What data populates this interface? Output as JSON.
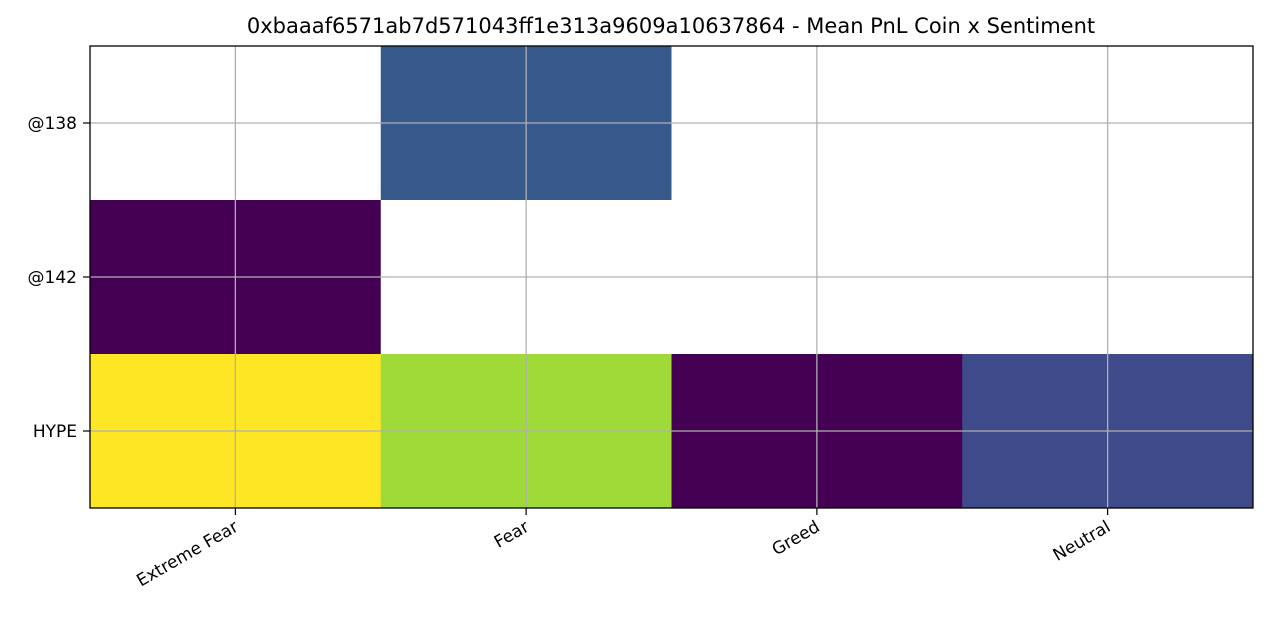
{
  "chart_data": {
    "type": "heatmap",
    "title": "0xbaaaf6571ab7d571043ff1e313a9609a10637864 - Mean PnL Coin x Sentiment",
    "x_categories": [
      "Extreme Fear",
      "Fear",
      "Greed",
      "Neutral"
    ],
    "y_categories": [
      "@138",
      "@142",
      "HYPE"
    ],
    "cells": [
      {
        "row": "@138",
        "col": "Extreme Fear",
        "value": null
      },
      {
        "row": "@138",
        "col": "Fear",
        "value": 0.2
      },
      {
        "row": "@138",
        "col": "Greed",
        "value": null
      },
      {
        "row": "@138",
        "col": "Neutral",
        "value": null
      },
      {
        "row": "@142",
        "col": "Extreme Fear",
        "value": 0.0
      },
      {
        "row": "@142",
        "col": "Fear",
        "value": null
      },
      {
        "row": "@142",
        "col": "Greed",
        "value": null
      },
      {
        "row": "@142",
        "col": "Neutral",
        "value": null
      },
      {
        "row": "HYPE",
        "col": "Extreme Fear",
        "value": 1.0
      },
      {
        "row": "HYPE",
        "col": "Fear",
        "value": 0.82
      },
      {
        "row": "HYPE",
        "col": "Greed",
        "value": 0.0
      },
      {
        "row": "HYPE",
        "col": "Neutral",
        "value": 0.17
      }
    ],
    "colormap": "viridis",
    "missing_color": "#ffffff",
    "grid": true,
    "grid_color": "#b0b0b0",
    "colors": {
      "0.0": "#440154",
      "0.17": "#3e4a89",
      "0.2": "#38598c",
      "0.82": "#a0da39",
      "1.0": "#fde725"
    }
  }
}
